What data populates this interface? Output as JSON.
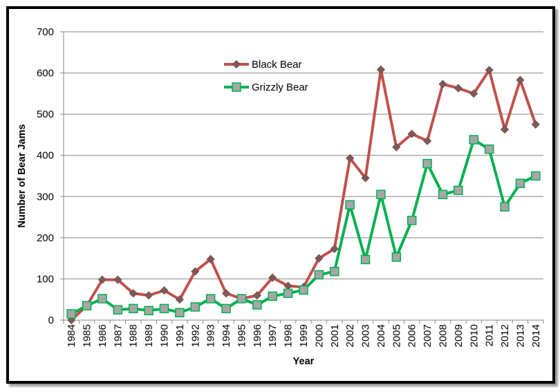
{
  "chart_data": {
    "type": "line",
    "title": "",
    "xlabel": "Year",
    "ylabel": "Number of Bear Jams",
    "ylim": [
      0,
      700
    ],
    "yticks": [
      0,
      100,
      200,
      300,
      400,
      500,
      600,
      700
    ],
    "grid": "horizontal",
    "legend_position": "top-left",
    "categories": [
      "1984",
      "1985",
      "1986",
      "1987",
      "1988",
      "1989",
      "1990",
      "1991",
      "1992",
      "1993",
      "1994",
      "1995",
      "1996",
      "1997",
      "1998",
      "1999",
      "2000",
      "2001",
      "2002",
      "2003",
      "2004",
      "2005",
      "2006",
      "2007",
      "2008",
      "2009",
      "2010",
      "2011",
      "2012",
      "2013",
      "2014"
    ],
    "series": [
      {
        "name": "Black Bear",
        "color": "#c0504d",
        "marker": "diamond",
        "marker_color": "#7f5a58",
        "values": [
          0,
          35,
          98,
          98,
          65,
          60,
          72,
          50,
          118,
          148,
          65,
          52,
          60,
          103,
          83,
          80,
          150,
          173,
          393,
          345,
          608,
          420,
          452,
          435,
          573,
          563,
          550,
          607,
          463,
          583,
          475
        ]
      },
      {
        "name": "Grizzly Bear",
        "color": "#00b050",
        "marker": "square",
        "marker_color": "#a6a6a6",
        "values": [
          15,
          35,
          52,
          25,
          28,
          23,
          28,
          18,
          32,
          52,
          28,
          52,
          37,
          58,
          65,
          73,
          110,
          118,
          280,
          147,
          305,
          153,
          242,
          380,
          305,
          315,
          438,
          415,
          275,
          332,
          350
        ]
      }
    ]
  }
}
